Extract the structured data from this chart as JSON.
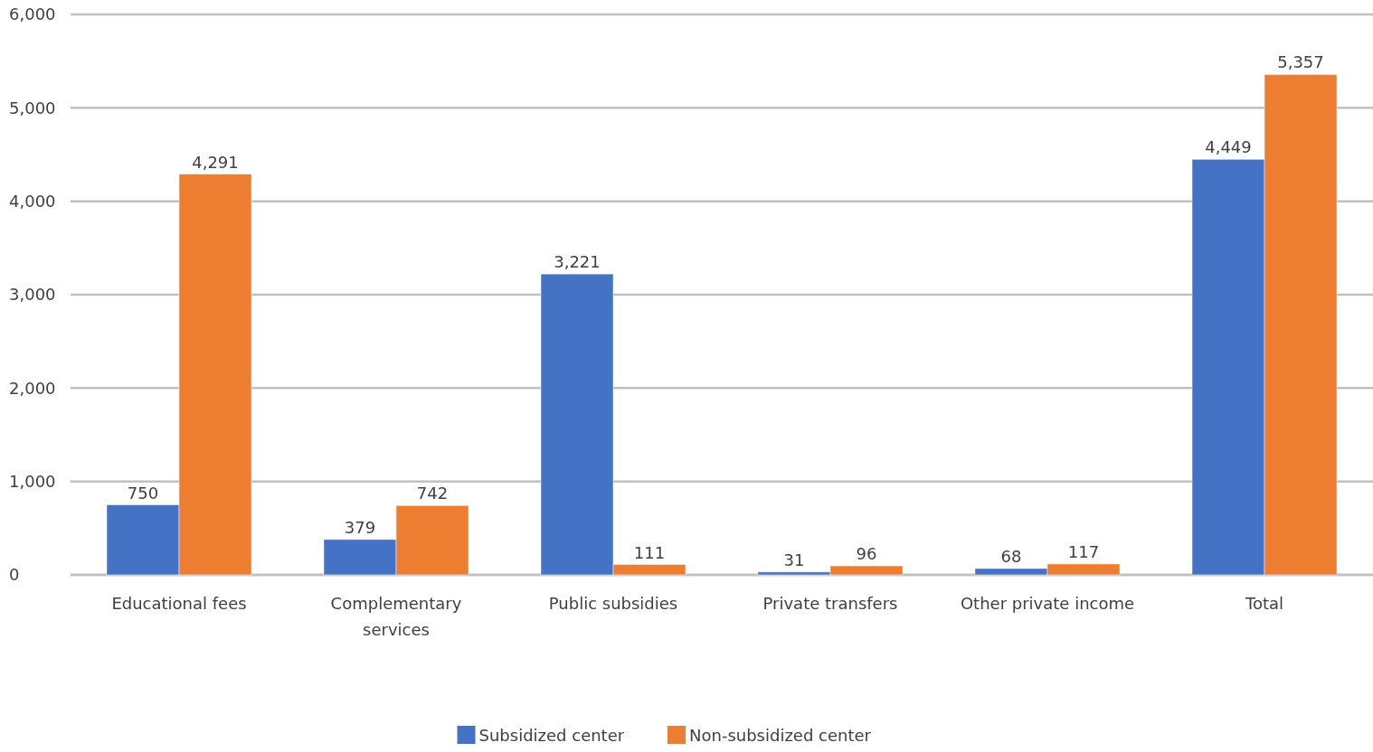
{
  "chart_data": {
    "type": "bar",
    "categories": [
      "Educational fees",
      "Complementary services",
      "Public subsidies",
      "Private transfers",
      "Other private income",
      "Total"
    ],
    "series": [
      {
        "name": "Subsidized center",
        "color": "#4472c4",
        "values": [
          750,
          379,
          3221,
          31,
          68,
          4449
        ],
        "value_labels": [
          "750",
          "379",
          "3,221",
          "31",
          "68",
          "4,449"
        ]
      },
      {
        "name": "Non-subsidized center",
        "color": "#ed7d31",
        "values": [
          4291,
          742,
          111,
          96,
          117,
          5357
        ],
        "value_labels": [
          "4,291",
          "742",
          "111",
          "96",
          "117",
          "5,357"
        ]
      }
    ],
    "ylim": [
      0,
      6000
    ],
    "yticks": [
      {
        "value": 0,
        "label": "0"
      },
      {
        "value": 1000,
        "label": "1,000"
      },
      {
        "value": 2000,
        "label": "2,000"
      },
      {
        "value": 3000,
        "label": "3,000"
      },
      {
        "value": 4000,
        "label": "4,000"
      },
      {
        "value": 5000,
        "label": "5,000"
      },
      {
        "value": 6000,
        "label": "6,000"
      }
    ],
    "grid": "y",
    "legend": "bottom"
  }
}
